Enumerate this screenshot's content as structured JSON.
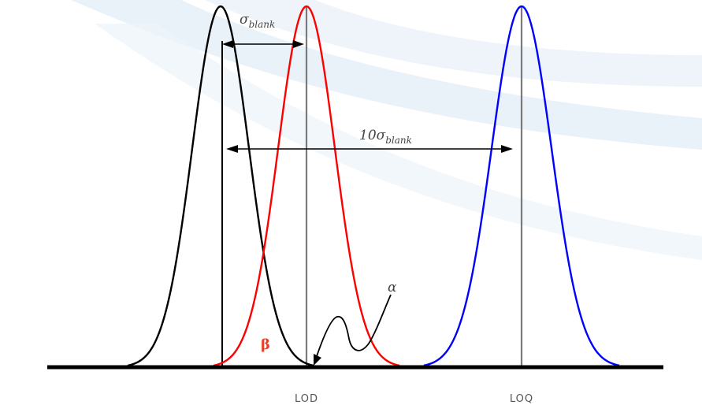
{
  "labels": {
    "sigma_blank": "σ",
    "sigma_blank_sub": "blank",
    "ten_sigma": "10σ",
    "ten_sigma_sub": "blank",
    "alpha": "α",
    "beta": "β",
    "lod": "LOD",
    "loq": "LOQ"
  },
  "colors": {
    "blank_curve": "#000000",
    "lod_curve": "#ff0000",
    "loq_curve": "#0000ff",
    "marker_line": "#7a7a7a",
    "axis": "#000000",
    "beta_label": "#e8402a"
  }
}
